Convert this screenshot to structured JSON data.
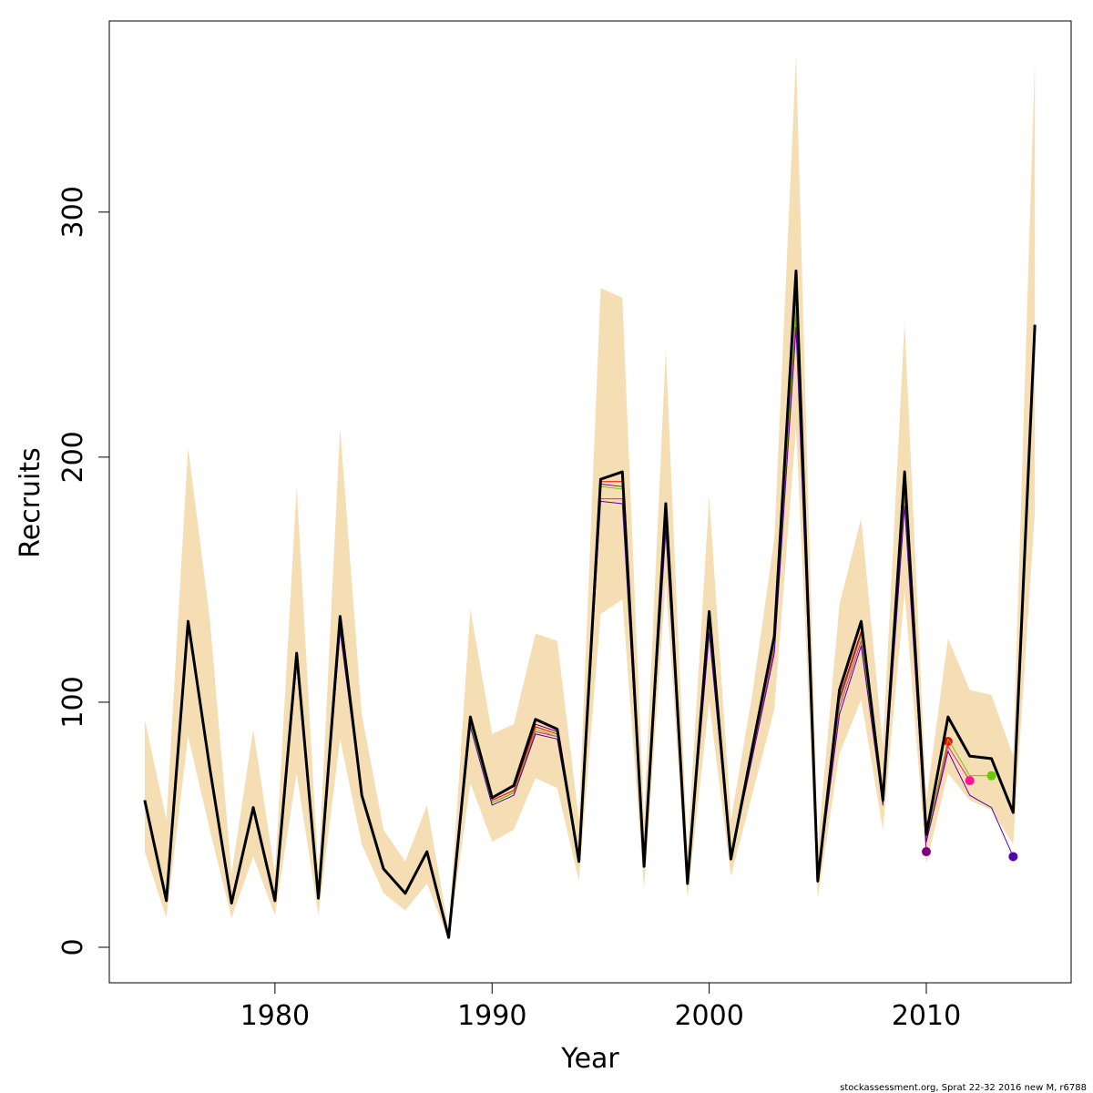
{
  "chart_data": {
    "type": "line",
    "xlabel": "Year",
    "ylabel": "Recruits",
    "footer": "stockassessment.org, Sprat  22-32  2016  new  M, r6788",
    "x": [
      1974,
      1975,
      1976,
      1977,
      1978,
      1979,
      1980,
      1981,
      1982,
      1983,
      1984,
      1985,
      1986,
      1987,
      1988,
      1989,
      1990,
      1991,
      1992,
      1993,
      1994,
      1995,
      1996,
      1997,
      1998,
      1999,
      2000,
      2001,
      2002,
      2003,
      2004,
      2005,
      2006,
      2007,
      2008,
      2009,
      2010,
      2011,
      2012,
      2013,
      2014,
      2015
    ],
    "band": {
      "color": "#f5deb3",
      "upper": [
        93,
        52,
        204,
        134,
        30,
        89,
        30,
        188,
        30,
        212,
        95,
        48,
        35,
        58,
        7,
        138,
        87,
        91,
        128,
        125,
        52,
        269,
        265,
        52,
        244,
        39,
        184,
        52,
        104,
        167,
        364,
        41,
        140,
        175,
        82,
        255,
        60,
        126,
        105,
        103,
        78,
        362
      ],
      "lower": [
        39,
        12,
        86,
        48,
        12,
        37,
        13,
        71,
        13,
        85,
        42,
        22,
        15,
        26,
        3,
        67,
        43,
        48,
        69,
        65,
        27,
        136,
        142,
        24,
        149,
        20,
        100,
        29,
        63,
        97,
        212,
        20,
        79,
        101,
        48,
        145,
        34,
        71,
        60,
        56,
        42,
        178
      ]
    },
    "series": [
      {
        "color": "#000000",
        "values": [
          60,
          19,
          133,
          73,
          18,
          57,
          19,
          120,
          20,
          135,
          62,
          32,
          22,
          39,
          4,
          94,
          61,
          66,
          93,
          89,
          35,
          191,
          194,
          33,
          181,
          26,
          137,
          36,
          82,
          127,
          276,
          27,
          105,
          133,
          60,
          194,
          46,
          94,
          78,
          77,
          55,
          254
        ]
      },
      {
        "color": "#5500aa",
        "values": [
          60,
          19,
          133,
          73,
          18,
          56,
          19,
          116,
          20,
          129,
          61,
          32,
          22,
          39,
          4,
          90,
          58,
          62,
          87,
          85,
          35,
          182,
          181,
          33,
          170,
          26,
          128,
          36,
          78,
          120,
          253,
          27,
          95,
          123,
          58,
          180,
          43,
          80,
          62,
          57,
          37,
          null
        ]
      },
      {
        "color": "#66cc00",
        "values": [
          60,
          19,
          133,
          73,
          18,
          56,
          19,
          117,
          20,
          130,
          61,
          32,
          22,
          39,
          4,
          91,
          59,
          63,
          89,
          86,
          35,
          188,
          187,
          33,
          174,
          26,
          131,
          36,
          80,
          124,
          262,
          27,
          100,
          127,
          59,
          186,
          44,
          85,
          70,
          70,
          null,
          null
        ]
      },
      {
        "color": "#ff1493",
        "values": [
          60,
          19,
          133,
          73,
          18,
          56,
          19,
          117,
          20,
          130,
          61,
          32,
          22,
          39,
          4,
          91,
          59,
          63,
          88,
          86,
          35,
          183,
          183,
          33,
          172,
          26,
          130,
          36,
          79,
          122,
          258,
          27,
          98,
          125,
          59,
          184,
          43,
          82,
          68,
          null,
          null,
          null
        ]
      },
      {
        "color": "#ff0000",
        "values": [
          60,
          19,
          133,
          73,
          18,
          57,
          19,
          118,
          20,
          131,
          62,
          32,
          22,
          39,
          4,
          92,
          60,
          64,
          90,
          87,
          35,
          190,
          190,
          33,
          176,
          26,
          133,
          36,
          81,
          125,
          270,
          27,
          102,
          129,
          59,
          188,
          45,
          84,
          null,
          null,
          null,
          null
        ]
      },
      {
        "color": "#800080",
        "values": [
          60,
          19,
          133,
          73,
          18,
          57,
          19,
          118,
          20,
          132,
          62,
          32,
          22,
          39,
          4,
          92,
          60,
          64,
          91,
          88,
          35,
          189,
          188,
          33,
          175,
          26,
          132,
          36,
          80,
          125,
          268,
          27,
          101,
          128,
          59,
          187,
          39,
          null,
          null,
          null,
          null,
          null
        ]
      }
    ],
    "end_points": true,
    "xlim": [
      1972.37,
      2016.67
    ],
    "ylim": [
      -14.5,
      378
    ],
    "xticks": [
      1980,
      1990,
      2000,
      2010
    ],
    "yticks": [
      0,
      100,
      200,
      300
    ]
  }
}
